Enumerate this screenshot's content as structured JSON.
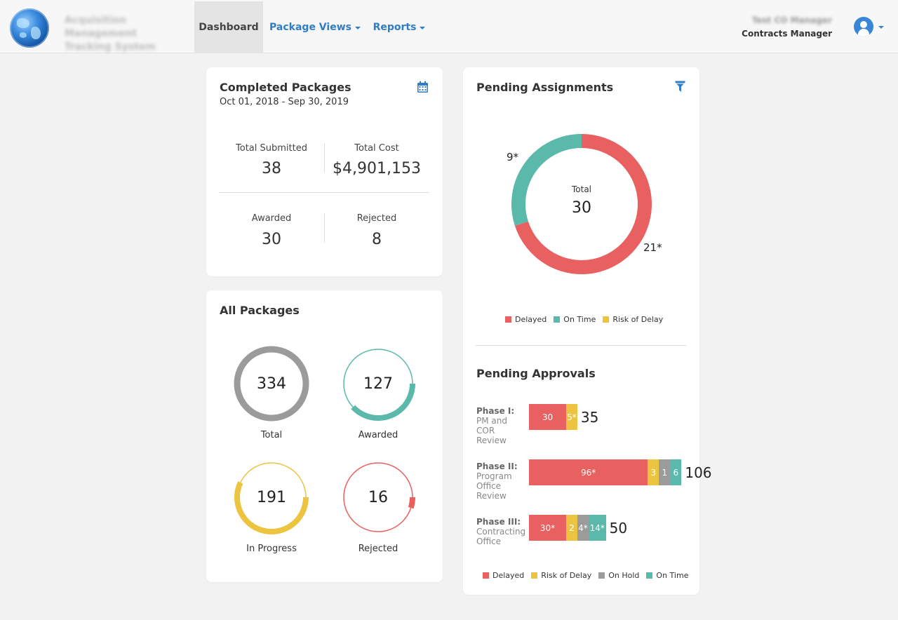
{
  "header": {
    "app_name": "Acquisition Management Tracking System",
    "nav": [
      {
        "label": "Dashboard"
      },
      {
        "label": "Package Views"
      },
      {
        "label": "Reports"
      }
    ],
    "user": {
      "name": "Test CO Manager",
      "role": "Contracts Manager"
    },
    "icons": {
      "avatar": "user-avatar-icon",
      "dropdown": "caret-down-icon",
      "logo": "globe-logo"
    }
  },
  "completed": {
    "title": "Completed Packages",
    "date_range": "Oct 01, 2018 - Sep 30, 2019",
    "icon": "calendar-icon",
    "stats": {
      "total_submitted": {
        "label": "Total Submitted",
        "value": "38"
      },
      "total_cost": {
        "label": "Total Cost",
        "value": "$4,901,153"
      },
      "awarded": {
        "label": "Awarded",
        "value": "30"
      },
      "rejected": {
        "label": "Rejected",
        "value": "8"
      }
    }
  },
  "all_packages": {
    "title": "All Packages",
    "rings": [
      {
        "label": "Total",
        "value": "334",
        "color": "#9b9b9b",
        "fraction": 1.0
      },
      {
        "label": "Awarded",
        "value": "127",
        "color": "#5bb9ab",
        "fraction": 0.38
      },
      {
        "label": "In Progress",
        "value": "191",
        "color": "#ecc440",
        "fraction": 0.57
      },
      {
        "label": "Rejected",
        "value": "16",
        "color": "#e86060",
        "fraction": 0.05
      }
    ]
  },
  "pending_assignments": {
    "title": "Pending Assignments",
    "icon": "filter-icon",
    "center_label": "Total",
    "center_value": "30",
    "chart_data": {
      "type": "pie",
      "slices": [
        {
          "name": "Delayed",
          "value": 21,
          "label": "21*",
          "color": "#e86060"
        },
        {
          "name": "On Time",
          "value": 9,
          "label": "9*",
          "color": "#5bb9ab"
        },
        {
          "name": "Risk of Delay",
          "value": 0,
          "label": "",
          "color": "#ecc440"
        }
      ],
      "legend_position": "bottom"
    },
    "legend": [
      {
        "name": "Delayed",
        "color": "#e86060"
      },
      {
        "name": "On Time",
        "color": "#5bb9ab"
      },
      {
        "name": "Risk of Delay",
        "color": "#ecc440"
      }
    ]
  },
  "pending_approvals": {
    "title": "Pending Approvals",
    "phases": [
      {
        "name": "Phase I:",
        "desc": "PM and COR Review",
        "total": "35",
        "segments": [
          {
            "label": "30",
            "value": 30,
            "color": "#e86060"
          },
          {
            "label": "5*",
            "value": 5,
            "color": "#ecc440"
          }
        ]
      },
      {
        "name": "Phase II:",
        "desc": "Program Office Review",
        "total": "106",
        "segments": [
          {
            "label": "96*",
            "value": 96,
            "color": "#e86060"
          },
          {
            "label": "3",
            "value": 3,
            "color": "#ecc440"
          },
          {
            "label": "1",
            "value": 1,
            "color": "#9b9b9b"
          },
          {
            "label": "6",
            "value": 6,
            "color": "#5bb9ab"
          }
        ]
      },
      {
        "name": "Phase III:",
        "desc": "Contracting Office",
        "total": "50",
        "segments": [
          {
            "label": "30*",
            "value": 30,
            "color": "#e86060"
          },
          {
            "label": "2",
            "value": 2,
            "color": "#ecc440"
          },
          {
            "label": "4*",
            "value": 4,
            "color": "#9b9b9b"
          },
          {
            "label": "14*",
            "value": 14,
            "color": "#5bb9ab"
          }
        ]
      }
    ],
    "legend": [
      {
        "name": "Delayed",
        "color": "#e86060"
      },
      {
        "name": "Risk of Delay",
        "color": "#ecc440"
      },
      {
        "name": "On Hold",
        "color": "#9b9b9b"
      },
      {
        "name": "On Time",
        "color": "#5bb9ab"
      }
    ]
  }
}
